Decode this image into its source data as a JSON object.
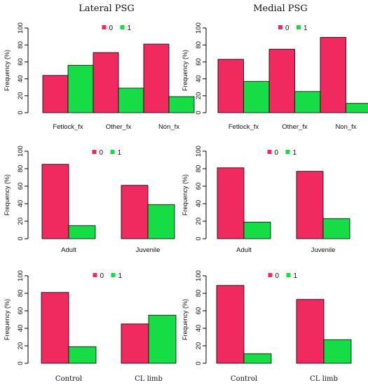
{
  "column_titles": [
    "Lateral PSG",
    "Medial PSG"
  ],
  "colors": {
    "series_0": "#f0295f",
    "series_1": "#16dc45",
    "outline": "#000000"
  },
  "chart_data": [
    {
      "type": "bar",
      "panel": "top-left",
      "categories": [
        "Fetlock_fx",
        "Other_fx",
        "Non_fx"
      ],
      "series": [
        {
          "name": "0",
          "values": [
            44,
            71,
            81
          ]
        },
        {
          "name": "1",
          "values": [
            56,
            29,
            19
          ]
        }
      ],
      "ylabel": "Frequency (%)",
      "ylim": [
        0,
        100
      ],
      "yticks": [
        0,
        20,
        40,
        60,
        80,
        100
      ],
      "legend": "top",
      "grid": false
    },
    {
      "type": "bar",
      "panel": "top-right",
      "categories": [
        "Fetlock_fx",
        "Other_fx",
        "Non_fx"
      ],
      "series": [
        {
          "name": "0",
          "values": [
            63,
            75,
            89
          ]
        },
        {
          "name": "1",
          "values": [
            37,
            25,
            11
          ]
        }
      ],
      "ylabel": "Frequency (%)",
      "ylim": [
        0,
        100
      ],
      "yticks": [
        0,
        20,
        40,
        60,
        80,
        100
      ],
      "legend": "top",
      "grid": false
    },
    {
      "type": "bar",
      "panel": "middle-left",
      "categories": [
        "Adult",
        "Juvenile"
      ],
      "series": [
        {
          "name": "0",
          "values": [
            85,
            61
          ]
        },
        {
          "name": "1",
          "values": [
            15,
            39
          ]
        }
      ],
      "ylabel": "Frequency (%)",
      "ylim": [
        0,
        100
      ],
      "yticks": [
        0,
        20,
        40,
        60,
        80,
        100
      ],
      "legend": "top",
      "grid": false
    },
    {
      "type": "bar",
      "panel": "middle-right",
      "categories": [
        "Adult",
        "Juvenile"
      ],
      "series": [
        {
          "name": "0",
          "values": [
            81,
            77
          ]
        },
        {
          "name": "1",
          "values": [
            19,
            23
          ]
        }
      ],
      "ylabel": "Frequency (%)",
      "ylim": [
        0,
        100
      ],
      "yticks": [
        0,
        20,
        40,
        60,
        80,
        100
      ],
      "legend": "top",
      "grid": false
    },
    {
      "type": "bar",
      "panel": "bottom-left",
      "categories": [
        "Control",
        "CL limb"
      ],
      "series": [
        {
          "name": "0",
          "values": [
            81,
            45
          ]
        },
        {
          "name": "1",
          "values": [
            19,
            55
          ]
        }
      ],
      "ylabel": "Frequency (%)",
      "ylim": [
        0,
        100
      ],
      "yticks": [
        0,
        20,
        40,
        60,
        80,
        100
      ],
      "legend": "top",
      "grid": false
    },
    {
      "type": "bar",
      "panel": "bottom-right",
      "categories": [
        "Control",
        "CL limb"
      ],
      "series": [
        {
          "name": "0",
          "values": [
            89,
            73
          ]
        },
        {
          "name": "1",
          "values": [
            11,
            27
          ]
        }
      ],
      "ylabel": "Frequency (%)",
      "ylim": [
        0,
        100
      ],
      "yticks": [
        0,
        20,
        40,
        60,
        80,
        100
      ],
      "legend": "top",
      "grid": false
    }
  ]
}
